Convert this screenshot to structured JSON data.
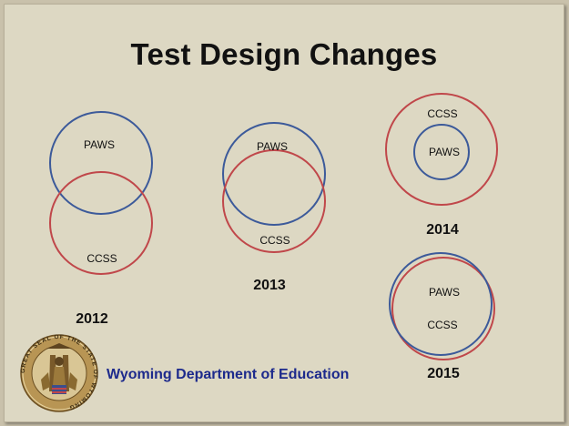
{
  "slide": {
    "title": "Test Design Changes",
    "department": "Wyoming Department of Education",
    "seal_text": "GREAT SEAL OF THE STATE OF WYOMING"
  },
  "colors": {
    "paws": "#3c5a9a",
    "ccss": "#c0474a"
  },
  "diagrams": {
    "d2012": {
      "year": "2012",
      "paws": "PAWS",
      "ccss": "CCSS"
    },
    "d2013": {
      "year": "2013",
      "paws": "PAWS",
      "ccss": "CCSS"
    },
    "d2014": {
      "year": "2014",
      "paws": "PAWS",
      "ccss": "CCSS"
    },
    "d2015": {
      "year": "2015",
      "paws": "PAWS",
      "ccss": "CCSS"
    }
  }
}
